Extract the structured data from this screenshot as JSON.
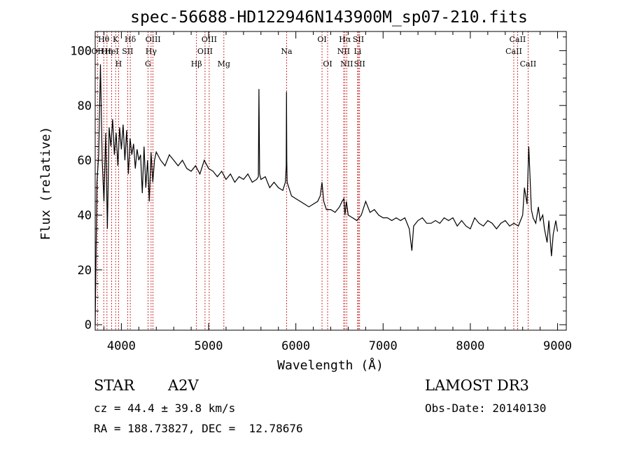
{
  "chart_data": {
    "type": "line",
    "title": "spec-56688-HD122946N143900M_sp07-210.fits",
    "xlabel": "Wavelength (Å)",
    "ylabel": "Flux (relative)",
    "xlim": [
      3700,
      9100
    ],
    "ylim": [
      -2,
      107
    ],
    "xticks": [
      4000,
      5000,
      6000,
      7000,
      8000,
      9000
    ],
    "yticks": [
      0,
      20,
      40,
      60,
      80,
      100
    ],
    "series": [
      {
        "x": [
          3700,
          3720,
          3740,
          3760,
          3780,
          3800,
          3820,
          3840,
          3860,
          3880,
          3900,
          3920,
          3940,
          3960,
          3980,
          4000,
          4020,
          4040,
          4060,
          4080,
          4100,
          4120,
          4140,
          4160,
          4180,
          4200,
          4220,
          4240,
          4260,
          4280,
          4300,
          4320,
          4340,
          4360,
          4380,
          4400,
          4450,
          4500,
          4550,
          4600,
          4650,
          4700,
          4750,
          4800,
          4850,
          4900,
          4950,
          5000,
          5050,
          5100,
          5150,
          5200,
          5250,
          5300,
          5350,
          5400,
          5450,
          5500,
          5550,
          5570,
          5577,
          5585,
          5600,
          5650,
          5700,
          5750,
          5800,
          5850,
          5880,
          5890,
          5893,
          5896,
          5900,
          5920,
          5950,
          6000,
          6050,
          6100,
          6150,
          6200,
          6250,
          6280,
          6300,
          6320,
          6350,
          6400,
          6450,
          6500,
          6530,
          6550,
          6563,
          6580,
          6600,
          6650,
          6700,
          6750,
          6800,
          6850,
          6900,
          6950,
          7000,
          7050,
          7100,
          7150,
          7200,
          7250,
          7300,
          7330,
          7350,
          7400,
          7450,
          7500,
          7550,
          7600,
          7650,
          7700,
          7750,
          7800,
          7850,
          7900,
          7950,
          8000,
          8050,
          8100,
          8150,
          8200,
          8250,
          8300,
          8350,
          8400,
          8450,
          8500,
          8550,
          8600,
          8620,
          8650,
          8670,
          8700,
          8720,
          8750,
          8780,
          8800,
          8830,
          8850,
          8880,
          8900,
          8930,
          8950,
          8980,
          9000
        ],
        "y": [
          0,
          52,
          62,
          95,
          60,
          45,
          70,
          35,
          72,
          65,
          75,
          62,
          70,
          58,
          72,
          64,
          73,
          60,
          71,
          55,
          68,
          62,
          66,
          57,
          64,
          60,
          62,
          48,
          65,
          50,
          60,
          45,
          63,
          52,
          60,
          63,
          60,
          58,
          62,
          60,
          58,
          60,
          57,
          56,
          58,
          55,
          60,
          57,
          56,
          54,
          56,
          53,
          55,
          52,
          54,
          53,
          55,
          52,
          53,
          54,
          86,
          55,
          53,
          54,
          50,
          52,
          50,
          49,
          52,
          58,
          85,
          60,
          52,
          50,
          47,
          46,
          45,
          44,
          43,
          44,
          45,
          47,
          52,
          45,
          42,
          42,
          41,
          43,
          45,
          46,
          40,
          45,
          40,
          39,
          38,
          40,
          45,
          41,
          42,
          40,
          39,
          39,
          38,
          39,
          38,
          39,
          35,
          27,
          36,
          38,
          39,
          37,
          37,
          38,
          37,
          39,
          38,
          39,
          36,
          38,
          36,
          35,
          39,
          37,
          36,
          38,
          37,
          35,
          37,
          38,
          36,
          37,
          36,
          40,
          50,
          44,
          65,
          42,
          39,
          37,
          43,
          38,
          40,
          35,
          30,
          38,
          25,
          33,
          38,
          34
        ]
      }
    ],
    "line_markers": [
      {
        "label": "OII",
        "wavelength": 3727,
        "row": 2
      },
      {
        "label": "Hθ",
        "wavelength": 3798,
        "row": 1
      },
      {
        "label": "Hη",
        "wavelength": 3835,
        "row": 2
      },
      {
        "label": "HeI",
        "wavelength": 3889,
        "row": 2
      },
      {
        "label": "K",
        "wavelength": 3934,
        "row": 1
      },
      {
        "label": "H",
        "wavelength": 3968,
        "row": 3
      },
      {
        "label": "SII",
        "wavelength": 4072,
        "row": 2
      },
      {
        "label": "Hδ",
        "wavelength": 4102,
        "row": 1
      },
      {
        "label": "G",
        "wavelength": 4305,
        "row": 3
      },
      {
        "label": "Hγ",
        "wavelength": 4341,
        "row": 2
      },
      {
        "label": "OIII",
        "wavelength": 4363,
        "row": 1
      },
      {
        "label": "Hβ",
        "wavelength": 4861,
        "row": 3
      },
      {
        "label": "OIII",
        "wavelength": 4959,
        "row": 2
      },
      {
        "label": "OIII",
        "wavelength": 5007,
        "row": 1
      },
      {
        "label": "Mg",
        "wavelength": 5175,
        "row": 3
      },
      {
        "label": "Na",
        "wavelength": 5894,
        "row": 2
      },
      {
        "label": "OI",
        "wavelength": 6300,
        "row": 1
      },
      {
        "label": "OI",
        "wavelength": 6364,
        "row": 3
      },
      {
        "label": "NII",
        "wavelength": 6548,
        "row": 2
      },
      {
        "label": "Hα",
        "wavelength": 6563,
        "row": 1
      },
      {
        "label": "NII",
        "wavelength": 6583,
        "row": 3
      },
      {
        "label": "Li",
        "wavelength": 6708,
        "row": 2
      },
      {
        "label": "SII",
        "wavelength": 6717,
        "row": 1
      },
      {
        "label": "SII",
        "wavelength": 6731,
        "row": 3
      },
      {
        "label": "CaII",
        "wavelength": 8498,
        "row": 2
      },
      {
        "label": "CaII",
        "wavelength": 8542,
        "row": 1
      },
      {
        "label": "CaII",
        "wavelength": 8662,
        "row": 3
      }
    ],
    "grid": false,
    "marker_color": "#c00000",
    "line_color": "#000000"
  },
  "info": {
    "object_class": "STAR",
    "subclass": "A2V",
    "cz": "cz = 44.4 ± 39.8 km/s",
    "coords": "RA = 188.73827, DEC =  12.78676",
    "survey": "LAMOST DR3",
    "obs_date": "Obs-Date: 20140130"
  }
}
